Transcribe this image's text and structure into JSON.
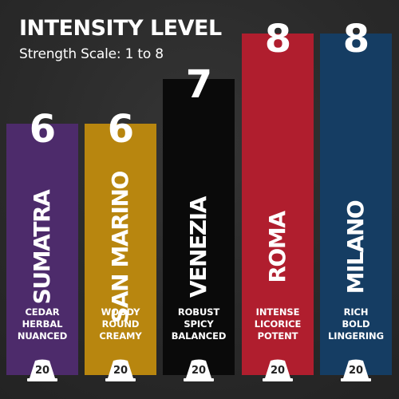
{
  "chart_data": {
    "type": "bar",
    "title": "INTENSITY LEVEL",
    "subtitle": "Strength Scale: 1 to 8",
    "ylim": [
      0,
      8
    ],
    "grid": false,
    "categories": [
      "SUMATRA",
      "SAN MARINO",
      "VENEZIA",
      "ROMA",
      "MILANO"
    ],
    "values": [
      6,
      6,
      7,
      8,
      8
    ],
    "bars": [
      {
        "name": "SUMATRA",
        "intensity": 6,
        "color": "#4d2b6b",
        "notes": [
          "CEDAR",
          "HERBAL",
          "NUANCED"
        ],
        "capsules": "20"
      },
      {
        "name": "SAN MARINO",
        "intensity": 6,
        "color": "#b8860f",
        "notes": [
          "WOODY",
          "ROUND",
          "CREAMY"
        ],
        "capsules": "20"
      },
      {
        "name": "VENEZIA",
        "intensity": 7,
        "color": "#0a0a0a",
        "notes": [
          "ROBUST",
          "SPICY",
          "BALANCED"
        ],
        "capsules": "20"
      },
      {
        "name": "ROMA",
        "intensity": 8,
        "color": "#b01e2e",
        "notes": [
          "INTENSE",
          "LICORICE",
          "POTENT"
        ],
        "capsules": "20"
      },
      {
        "name": "MILANO",
        "intensity": 8,
        "color": "#153d63",
        "notes": [
          "RICH",
          "BOLD",
          "LINGERING"
        ],
        "capsules": "20"
      }
    ]
  },
  "capsule_icon": "coffee-capsule-icon"
}
